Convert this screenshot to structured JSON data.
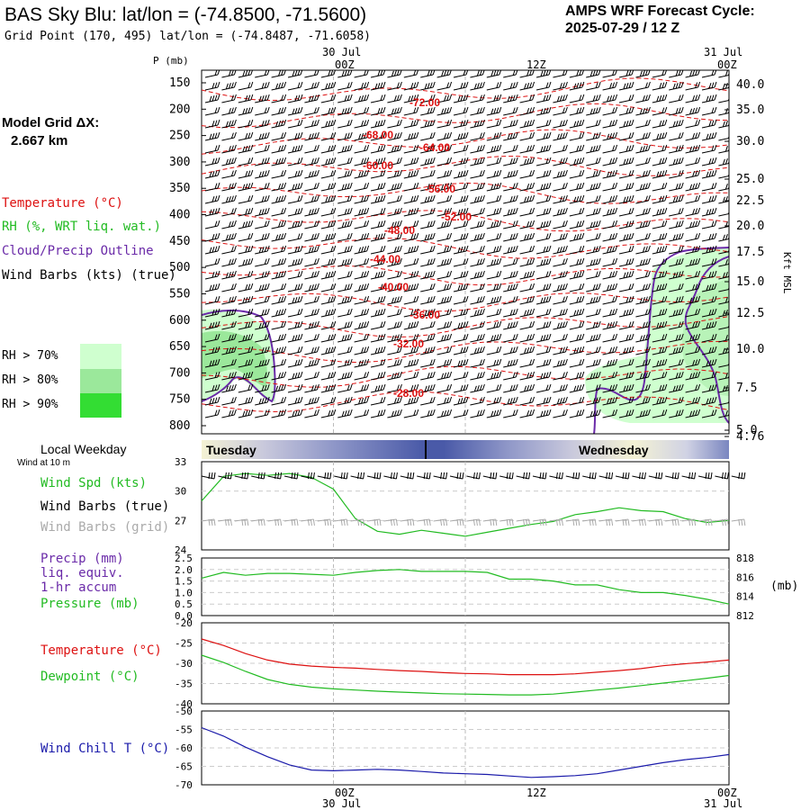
{
  "header": {
    "title": "BAS Sky Blu:  lat/lon = (-74.8500, -71.5600)",
    "grid_point": "Grid Point (170, 495) lat/lon = (-74.8487, -71.6058)",
    "cycle_label": "AMPS WRF Forecast Cycle:",
    "cycle_value": "2025-07-29 / 12  Z"
  },
  "left_panel": {
    "model_grid_label": "Model Grid ΔX:",
    "model_grid_value": "2.667 km",
    "legend": {
      "temperature": "Temperature (°C)",
      "rh": "RH (%, WRT liq. wat.)",
      "cloud": "Cloud/Precip Outline",
      "wind": "Wind Barbs (kts) (true)"
    },
    "rh_swatches": [
      {
        "label": "RH > 70%",
        "color": "#cfffcf"
      },
      {
        "label": "RH > 80%",
        "color": "#9be89b"
      },
      {
        "label": "RH > 90%",
        "color": "#33dd33"
      }
    ]
  },
  "colors": {
    "temperature": "#dd1111",
    "rh": "#22bb22",
    "cloud": "#6a2aa8",
    "wind": "#000000",
    "wind_grid": "#aaaaaa",
    "precip": "#6a2aa8",
    "pressure": "#22bb22",
    "dewpoint": "#22bb22",
    "windchill": "#1a1aaa",
    "weekday_dark": "#4a5aa8",
    "weekday_light": "#f4f2d4"
  },
  "time_axis": {
    "top_dates": [
      "30 Jul",
      "31 Jul"
    ],
    "top_ticks": [
      "00Z",
      "12Z",
      "00Z"
    ],
    "bottom_ticks": [
      "00Z",
      "12Z",
      "00Z"
    ],
    "bottom_dates": [
      "30 Jul",
      "31 Jul"
    ]
  },
  "chart_data": [
    {
      "type": "heatmap",
      "ylabel": "P (mb)",
      "right_label": "Kft MSL",
      "ylim": [
        820,
        140
      ],
      "hours": [
        12,
        60
      ],
      "pressure_ticks": [
        "150",
        "200",
        "250",
        "300",
        "350",
        "400",
        "450",
        "500",
        "550",
        "600",
        "650",
        "700",
        "750",
        "800"
      ],
      "kft_ticks": [
        "40.0",
        "35.0",
        "30.0",
        "25.0",
        "22.5",
        "20.0",
        "17.5",
        "15.0",
        "12.5",
        "10.0",
        "7.5",
        "5.0",
        "4.76"
      ],
      "temperature_labels": [
        "-72.00",
        "-68.00",
        "-64.00",
        "-60.00",
        "-56.00",
        "-52.00",
        "-48.00",
        "-44.00",
        "-40.00",
        "-36.00",
        "-32.00",
        "-28.00"
      ],
      "legend": "top-left"
    },
    {
      "type": "line",
      "title": "Local Weekday",
      "categories": [
        "Tuesday",
        "Wednesday"
      ]
    },
    {
      "type": "line",
      "label_small": "Wind at 10 m",
      "labels": [
        "Wind Spd (kts)",
        "Wind Barbs (true)",
        "Wind Barbs (grid)"
      ],
      "ylim": [
        24,
        33
      ],
      "yticks": [
        "33",
        "30",
        "27",
        "24"
      ],
      "x": [
        12,
        14,
        16,
        18,
        20,
        22,
        24,
        26,
        28,
        30,
        32,
        34,
        36,
        38,
        40,
        42,
        44,
        46,
        48,
        50,
        52,
        54,
        56,
        58,
        60
      ],
      "series": [
        {
          "name": "Wind Spd (kts)",
          "values": [
            29.0,
            31.5,
            31.8,
            31.6,
            31.8,
            31.4,
            30.2,
            27.2,
            25.9,
            25.6,
            26.0,
            25.7,
            25.4,
            25.8,
            26.2,
            26.6,
            26.9,
            27.6,
            27.9,
            28.3,
            28.0,
            27.9,
            27.2,
            26.8,
            27.0
          ]
        }
      ]
    },
    {
      "type": "line",
      "labels": [
        "Precip (mm)",
        "liq. equiv.",
        "1-hr accum",
        "Pressure (mb)"
      ],
      "right_unit": "(mb)",
      "ylim": [
        0,
        2.5
      ],
      "yticks": [
        "2.5",
        "2.0",
        "1.5",
        "1.0",
        "0.5",
        "0.0"
      ],
      "ylim_right": [
        812,
        818
      ],
      "yticks_right": [
        "818",
        "816",
        "814",
        "812"
      ],
      "x": [
        12,
        14,
        16,
        18,
        20,
        22,
        24,
        26,
        28,
        30,
        32,
        34,
        36,
        38,
        40,
        42,
        44,
        46,
        48,
        50,
        52,
        54,
        56,
        58,
        60
      ],
      "series": [
        {
          "name": "Pressure (mb)",
          "values": [
            815.9,
            816.5,
            816.2,
            816.4,
            816.4,
            816.3,
            816.2,
            816.5,
            816.7,
            816.8,
            816.6,
            816.6,
            816.6,
            816.5,
            815.8,
            815.8,
            815.6,
            815.2,
            815.2,
            814.7,
            814.4,
            814.4,
            814.1,
            813.7,
            813.2
          ]
        }
      ]
    },
    {
      "type": "line",
      "labels": [
        "Temperature (°C)",
        "Dewpoint (°C)"
      ],
      "ylim": [
        -40,
        -20
      ],
      "yticks": [
        "-20",
        "-25",
        "-30",
        "-35",
        "-40"
      ],
      "x": [
        12,
        14,
        16,
        18,
        20,
        22,
        24,
        26,
        28,
        30,
        32,
        34,
        36,
        38,
        40,
        42,
        44,
        46,
        48,
        50,
        52,
        54,
        56,
        58,
        60
      ],
      "series": [
        {
          "name": "Temperature (°C)",
          "values": [
            -24.0,
            -25.6,
            -27.6,
            -29.2,
            -30.2,
            -30.7,
            -31.0,
            -31.2,
            -31.5,
            -31.8,
            -32.0,
            -32.3,
            -32.5,
            -32.6,
            -32.8,
            -32.8,
            -32.8,
            -32.6,
            -32.2,
            -31.8,
            -31.3,
            -30.6,
            -30.1,
            -29.7,
            -29.2
          ]
        },
        {
          "name": "Dewpoint (°C)",
          "values": [
            -28.0,
            -29.8,
            -32.0,
            -34.0,
            -35.2,
            -35.9,
            -36.3,
            -36.6,
            -36.9,
            -37.1,
            -37.3,
            -37.5,
            -37.6,
            -37.7,
            -37.8,
            -37.8,
            -37.6,
            -37.1,
            -36.6,
            -36.1,
            -35.5,
            -34.9,
            -34.3,
            -33.7,
            -33.0
          ]
        }
      ]
    },
    {
      "type": "line",
      "labels": [
        "Wind Chill T (°C)"
      ],
      "ylim": [
        -70,
        -50
      ],
      "yticks": [
        "-50",
        "-55",
        "-60",
        "-65",
        "-70"
      ],
      "x": [
        12,
        14,
        16,
        18,
        20,
        22,
        24,
        26,
        28,
        30,
        32,
        34,
        36,
        38,
        40,
        42,
        44,
        46,
        48,
        50,
        52,
        54,
        56,
        58,
        60
      ],
      "series": [
        {
          "name": "Wind Chill T (°C)",
          "values": [
            -54.5,
            -56.8,
            -59.8,
            -62.4,
            -64.6,
            -66.0,
            -66.2,
            -66.0,
            -65.8,
            -66.0,
            -66.4,
            -66.8,
            -67.0,
            -67.2,
            -67.6,
            -68.0,
            -67.8,
            -67.5,
            -67.0,
            -66.0,
            -65.0,
            -64.0,
            -63.2,
            -62.6,
            -61.8
          ]
        }
      ]
    }
  ]
}
